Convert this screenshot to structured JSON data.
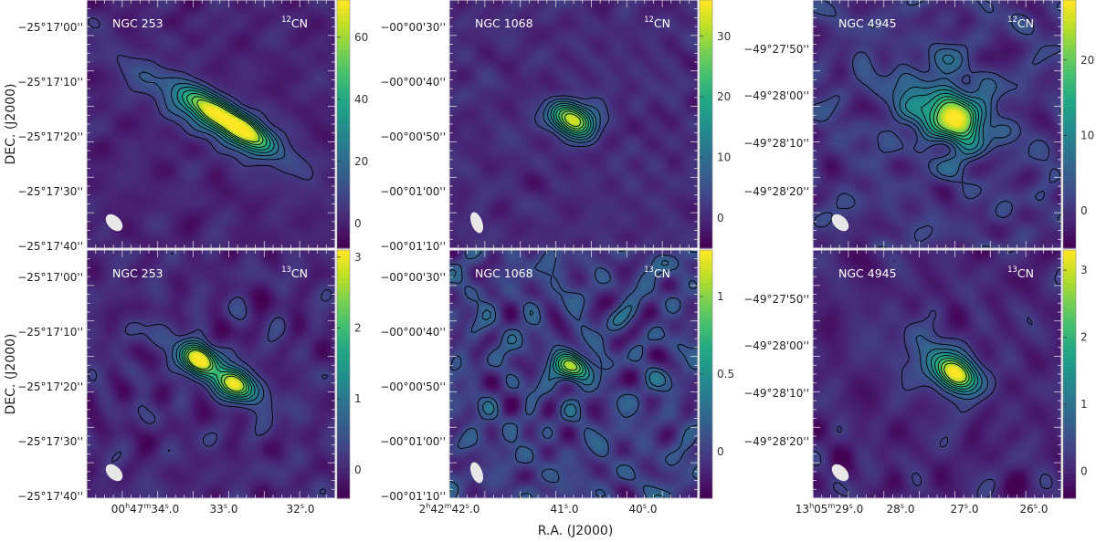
{
  "figure": {
    "xlabel_shared": "R.A. (J2000)",
    "ylabel": "DEC. (J2000)",
    "colors": {
      "cmap": [
        "#440154",
        "#482475",
        "#414487",
        "#355f8d",
        "#2a788e",
        "#21918c",
        "#22a884",
        "#44bf70",
        "#7ad151",
        "#bddf26",
        "#fde725"
      ],
      "contour": "#000000",
      "beam": "#e8e8e8",
      "frame_label": "#ffffff"
    }
  },
  "chart_data": [
    {
      "type": "heatmap",
      "galaxy": "NGC 253",
      "line": {
        "iso": "12",
        "species": "CN"
      },
      "ra_ticks": [],
      "dec_ticks": [
        "−25°17'00''",
        "−25°17'10''",
        "−25°17'20''",
        "−25°17'30''",
        "−25°17'40''"
      ],
      "colorbar_ticks": [
        "60",
        "40",
        "20",
        "0"
      ],
      "colorbar_range": [
        -8,
        72
      ],
      "peaks": [
        {
          "ra": 0.63,
          "dec": 0.52,
          "amp": 65,
          "sx": 0.09,
          "sy": 0.035,
          "angle": 32
        },
        {
          "ra": 0.48,
          "dec": 0.43,
          "amp": 42,
          "sx": 0.08,
          "sy": 0.035,
          "angle": 32
        },
        {
          "ra": 0.5,
          "dec": 0.47,
          "amp": 22,
          "sx": 0.26,
          "sy": 0.06,
          "angle": 32
        }
      ],
      "noise": 2.5,
      "contours": 8
    },
    {
      "type": "heatmap",
      "galaxy": "NGC 1068",
      "line": {
        "iso": "12",
        "species": "CN"
      },
      "ra_ticks": [],
      "dec_ticks": [
        "−00°00'30''",
        "−00°00'40''",
        "−00°00'50''",
        "−00°01'00''",
        "−00°01'10''"
      ],
      "colorbar_ticks": [
        "30",
        "20",
        "10",
        "0"
      ],
      "colorbar_range": [
        -5,
        36
      ],
      "peaks": [
        {
          "ra": 0.5,
          "dec": 0.48,
          "amp": 33,
          "sx": 0.065,
          "sy": 0.045,
          "angle": 20
        }
      ],
      "noise": 1.6,
      "contours": 9
    },
    {
      "type": "heatmap",
      "galaxy": "NGC 4945",
      "line": {
        "iso": "12",
        "species": "CN"
      },
      "ra_ticks": [],
      "dec_ticks": [
        "−49°27'50''",
        "−49°28'00''",
        "−49°28'10''",
        "−49°28'20''"
      ],
      "colorbar_ticks": [
        "20",
        "10",
        "0"
      ],
      "colorbar_range": [
        -5,
        28
      ],
      "peaks": [
        {
          "ra": 0.58,
          "dec": 0.48,
          "amp": 22,
          "sx": 0.07,
          "sy": 0.05,
          "angle": 45
        },
        {
          "ra": 0.52,
          "dec": 0.44,
          "amp": 10,
          "sx": 0.15,
          "sy": 0.11,
          "angle": 30
        }
      ],
      "noise": 2.2,
      "contours": 8
    },
    {
      "type": "heatmap",
      "galaxy": "NGC 253",
      "line": {
        "iso": "13",
        "species": "CN"
      },
      "ra_ticks": [
        "00h47m34.0s",
        "33.0",
        "32.0"
      ],
      "ra_tick_parts": [
        [
          "00",
          "h",
          "47",
          "m",
          "34",
          "s",
          ".0"
        ],
        [
          "33",
          "s",
          ".0"
        ],
        [
          "32",
          "s",
          ".0"
        ]
      ],
      "dec_ticks": [
        "−25°17'00''",
        "−25°17'10''",
        "−25°17'20''",
        "−25°17'30''",
        "−25°17'40''"
      ],
      "colorbar_ticks": [
        "3",
        "2",
        "1",
        "0"
      ],
      "colorbar_range": [
        -0.4,
        3.1
      ],
      "peaks": [
        {
          "ra": 0.45,
          "dec": 0.44,
          "amp": 2.8,
          "sx": 0.045,
          "sy": 0.035,
          "angle": 32
        },
        {
          "ra": 0.6,
          "dec": 0.54,
          "amp": 2.4,
          "sx": 0.05,
          "sy": 0.035,
          "angle": 32
        },
        {
          "ra": 0.52,
          "dec": 0.49,
          "amp": 1.0,
          "sx": 0.17,
          "sy": 0.05,
          "angle": 32
        }
      ],
      "noise": 0.22,
      "contours": 8
    },
    {
      "type": "heatmap",
      "galaxy": "NGC 1068",
      "line": {
        "iso": "13",
        "species": "CN"
      },
      "ra_ticks": [
        "2h42m42.0s",
        "41.0",
        "40.0"
      ],
      "ra_tick_parts": [
        [
          "2",
          "h",
          "42",
          "m",
          "42",
          "s",
          ".0"
        ],
        [
          "41",
          "s",
          ".0"
        ],
        [
          "40",
          "s",
          ".0"
        ]
      ],
      "dec_ticks": [
        "−00°00'30''",
        "−00°00'40''",
        "−00°00'50''",
        "−00°01'00''",
        "−00°01'10''"
      ],
      "colorbar_ticks": [
        "1",
        "0.5",
        "0"
      ],
      "colorbar_range": [
        -0.3,
        1.3
      ],
      "peaks": [
        {
          "ra": 0.5,
          "dec": 0.47,
          "amp": 1.1,
          "sx": 0.05,
          "sy": 0.035,
          "angle": 20
        }
      ],
      "noise": 0.14,
      "contours": 7
    },
    {
      "type": "heatmap",
      "galaxy": "NGC 4945",
      "line": {
        "iso": "13",
        "species": "CN"
      },
      "ra_ticks": [
        "13h05m29.0s",
        "28.0",
        "27.0",
        "26.0"
      ],
      "ra_tick_parts": [
        [
          "13",
          "h",
          "05",
          "m",
          "29",
          "s",
          ".0"
        ],
        [
          "28",
          "s",
          ".0"
        ],
        [
          "27",
          "s",
          ".0"
        ],
        [
          "26",
          "s",
          ".0"
        ]
      ],
      "dec_ticks": [
        "−49°27'50''",
        "−49°28'00''",
        "−49°28'10''",
        "−49°28'20''"
      ],
      "colorbar_ticks": [
        "3",
        "2",
        "1",
        "0"
      ],
      "colorbar_range": [
        -0.4,
        3.3
      ],
      "peaks": [
        {
          "ra": 0.58,
          "dec": 0.5,
          "amp": 3.0,
          "sx": 0.06,
          "sy": 0.04,
          "angle": 35
        },
        {
          "ra": 0.5,
          "dec": 0.45,
          "amp": 0.9,
          "sx": 0.13,
          "sy": 0.07,
          "angle": 35
        }
      ],
      "noise": 0.2,
      "contours": 8
    }
  ]
}
